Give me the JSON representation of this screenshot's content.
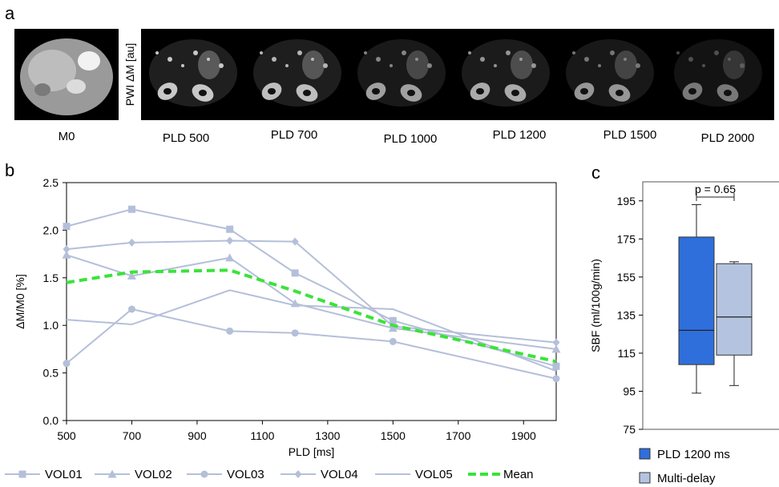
{
  "panel_a": {
    "letter": "a",
    "pwi_label": "PWI ΔM [au]",
    "images": [
      {
        "label": "M0",
        "kind": "m0"
      },
      {
        "label": "PLD 500",
        "kind": "pwi",
        "brightness": 1.0
      },
      {
        "label": "PLD 700",
        "kind": "pwi",
        "brightness": 0.95
      },
      {
        "label": "PLD 1000",
        "kind": "pwi",
        "brightness": 0.8
      },
      {
        "label": "PLD 1200",
        "kind": "pwi",
        "brightness": 0.85
      },
      {
        "label": "PLD 1500",
        "kind": "pwi",
        "brightness": 0.75
      },
      {
        "label": "PLD 2000",
        "kind": "pwi",
        "brightness": 0.6
      }
    ]
  },
  "panel_b": {
    "letter": "b"
  },
  "panel_c": {
    "letter": "c"
  },
  "colors": {
    "series": "#b4bfd9",
    "mean": "#3ae33a",
    "box1": "#2f6fdc",
    "box2": "#b4c4e0",
    "axis": "#000000"
  },
  "chart_data": [
    {
      "type": "line",
      "title": "",
      "xlabel": "PLD [ms]",
      "ylabel": "ΔM/M0 [%]",
      "xlim": [
        500,
        2000
      ],
      "ylim": [
        0.0,
        2.5
      ],
      "xticks": [
        500,
        700,
        900,
        1100,
        1300,
        1500,
        1700,
        1900
      ],
      "xtick_labels": [
        "500",
        "700",
        "900",
        "1100",
        "1300",
        "1500",
        "1700",
        "1900"
      ],
      "yticks": [
        0.0,
        0.5,
        1.0,
        1.5,
        2.0,
        2.5
      ],
      "ytick_labels": [
        "0.0",
        "0.5",
        "1.0",
        "1.5",
        "2.0",
        "2.5"
      ],
      "grid": false,
      "legend_position": "bottom",
      "x": [
        500,
        700,
        1000,
        1200,
        1500,
        2000
      ],
      "series": [
        {
          "name": "VOL01",
          "marker": "square",
          "values": [
            2.04,
            2.22,
            2.01,
            1.55,
            1.05,
            0.57
          ]
        },
        {
          "name": "VOL02",
          "marker": "triangle",
          "values": [
            1.74,
            1.52,
            1.71,
            1.23,
            0.97,
            0.75
          ]
        },
        {
          "name": "VOL03",
          "marker": "circle",
          "values": [
            0.6,
            1.17,
            0.94,
            0.92,
            0.83,
            0.44
          ]
        },
        {
          "name": "VOL04",
          "marker": "diamond",
          "values": [
            1.8,
            1.87,
            1.89,
            1.88,
            0.99,
            0.82
          ]
        },
        {
          "name": "VOL05",
          "marker": "none",
          "values": [
            1.06,
            1.01,
            1.37,
            1.21,
            1.17,
            0.52
          ]
        },
        {
          "name": "Mean",
          "marker": "none",
          "dashed": true,
          "values": [
            1.45,
            1.56,
            1.58,
            1.36,
            1.0,
            0.62
          ]
        }
      ]
    },
    {
      "type": "box",
      "title": "",
      "ylabel": "SBF (ml/100g/min)",
      "ylim": [
        75,
        205
      ],
      "yticks": [
        75,
        95,
        115,
        135,
        155,
        175,
        195
      ],
      "ytick_labels": [
        "75",
        "95",
        "115",
        "135",
        "155",
        "175",
        "195"
      ],
      "annotation": "p = 0.65",
      "legend_position": "bottom",
      "series": [
        {
          "name": "PLD 1200 ms",
          "min": 94,
          "q1": 109,
          "median": 127,
          "q3": 176,
          "max": 193
        },
        {
          "name": "Multi-delay",
          "min": 98,
          "q1": 114,
          "median": 134,
          "q3": 162,
          "max": 163
        }
      ]
    }
  ]
}
